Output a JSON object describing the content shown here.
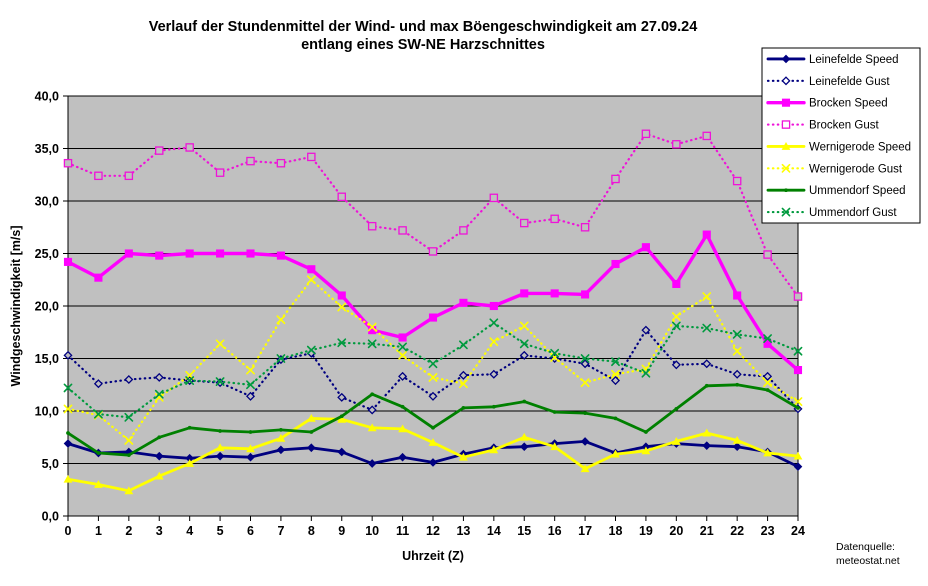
{
  "chart_data": {
    "type": "line",
    "title_line1": "Verlauf der Stundenmittel der Wind- und max Böengeschwindigkeit am 27.09.24",
    "title_line2": "entlang eines SW-NE Harzschnittes",
    "xlabel": "Uhrzeit (Z)",
    "ylabel": "Windgeschwindigkeit [m/s]",
    "x": [
      0,
      1,
      2,
      3,
      4,
      5,
      6,
      7,
      8,
      9,
      10,
      11,
      12,
      13,
      14,
      15,
      16,
      17,
      18,
      19,
      20,
      21,
      22,
      23,
      24
    ],
    "xtick_labels": [
      "0",
      "1",
      "2",
      "3",
      "4",
      "5",
      "6",
      "7",
      "8",
      "9",
      "10",
      "11",
      "12",
      "13",
      "14",
      "15",
      "16",
      "17",
      "18",
      "19",
      "20",
      "21",
      "22",
      "23",
      "24"
    ],
    "ylim": [
      0,
      40
    ],
    "ytick_step": 5,
    "ytick_labels": [
      "0,0",
      "5,0",
      "10,0",
      "15,0",
      "20,0",
      "25,0",
      "30,0",
      "35,0",
      "40,0"
    ],
    "grid": "horizontal",
    "plot_bg": "#c0c0c0",
    "legend_position": "top-right",
    "series": [
      {
        "name": "Leinefelde Speed",
        "color": "#000080",
        "style": "solid",
        "marker": "diamond",
        "width": 2.8,
        "values": [
          6.9,
          6.0,
          6.1,
          5.7,
          5.5,
          5.7,
          5.6,
          6.3,
          6.5,
          6.1,
          5.0,
          5.6,
          5.1,
          5.9,
          6.5,
          6.6,
          6.9,
          7.1,
          6.0,
          6.6,
          6.9,
          6.7,
          6.6,
          6.1,
          4.7
        ]
      },
      {
        "name": "Leinefelde Gust",
        "color": "#000080",
        "style": "dotted",
        "marker": "diamond-open",
        "width": 2.2,
        "values": [
          15.3,
          12.6,
          13.0,
          13.2,
          12.9,
          12.7,
          11.4,
          14.9,
          15.5,
          11.3,
          10.1,
          13.3,
          11.4,
          13.4,
          13.5,
          15.3,
          15.0,
          14.5,
          12.9,
          17.7,
          14.4,
          14.5,
          13.5,
          13.3,
          10.2
        ]
      },
      {
        "name": "Brocken Speed",
        "color": "#ff00ff",
        "style": "solid",
        "marker": "square",
        "width": 3.4,
        "values": [
          24.2,
          22.7,
          25.0,
          24.8,
          25.0,
          25.0,
          25.0,
          24.8,
          23.5,
          21.0,
          17.7,
          17.0,
          18.9,
          20.3,
          20.0,
          21.2,
          21.2,
          21.1,
          24.0,
          25.6,
          22.1,
          26.8,
          21.0,
          16.4,
          13.9
        ]
      },
      {
        "name": "Brocken Gust",
        "color": "#ee14d8",
        "style": "dotted",
        "marker": "square-open",
        "width": 2.2,
        "values": [
          33.6,
          32.4,
          32.4,
          34.8,
          35.1,
          32.7,
          33.8,
          33.6,
          34.2,
          30.4,
          27.6,
          27.2,
          25.2,
          27.2,
          30.3,
          27.9,
          28.3,
          27.5,
          32.1,
          36.4,
          35.4,
          36.2,
          31.9,
          24.9,
          20.9
        ]
      },
      {
        "name": "Wernigerode Speed",
        "color": "#ffff00",
        "style": "solid",
        "marker": "triangle",
        "width": 2.8,
        "values": [
          3.5,
          3.0,
          2.4,
          3.8,
          5.0,
          6.5,
          6.4,
          7.4,
          9.3,
          9.2,
          8.4,
          8.3,
          7.0,
          5.6,
          6.3,
          7.5,
          6.6,
          4.5,
          5.9,
          6.2,
          7.1,
          7.9,
          7.2,
          6.0,
          5.7
        ]
      },
      {
        "name": "Wernigerode Gust",
        "color": "#ffff00",
        "style": "dotted",
        "marker": "x",
        "width": 2.2,
        "values": [
          10.2,
          9.6,
          7.2,
          11.3,
          13.4,
          16.4,
          13.9,
          18.7,
          22.5,
          19.9,
          18.0,
          15.3,
          13.2,
          12.6,
          16.6,
          18.1,
          15.1,
          12.7,
          13.5,
          14.0,
          19.0,
          20.9,
          15.7,
          12.7,
          10.9
        ]
      },
      {
        "name": "Ummendorf Speed",
        "color": "#008000",
        "style": "solid",
        "marker": "dot",
        "width": 2.8,
        "values": [
          7.9,
          6.0,
          5.8,
          7.5,
          8.4,
          8.1,
          8.0,
          8.2,
          8.0,
          9.5,
          11.6,
          10.4,
          8.4,
          10.3,
          10.4,
          10.9,
          9.9,
          9.8,
          9.3,
          8.0,
          10.2,
          12.4,
          12.5,
          12.0,
          10.3
        ]
      },
      {
        "name": "Ummendorf Gust",
        "color": "#009a3e",
        "style": "dotted",
        "marker": "x",
        "width": 2.2,
        "values": [
          12.2,
          9.7,
          9.4,
          11.6,
          12.9,
          12.8,
          12.5,
          15.0,
          15.8,
          16.5,
          16.4,
          16.1,
          14.5,
          16.3,
          18.4,
          16.4,
          15.5,
          15.0,
          14.7,
          13.6,
          18.1,
          17.9,
          17.3,
          16.9,
          15.7
        ]
      }
    ]
  },
  "source": {
    "line1": "Datenquelle:",
    "line2": "meteostat.net"
  }
}
